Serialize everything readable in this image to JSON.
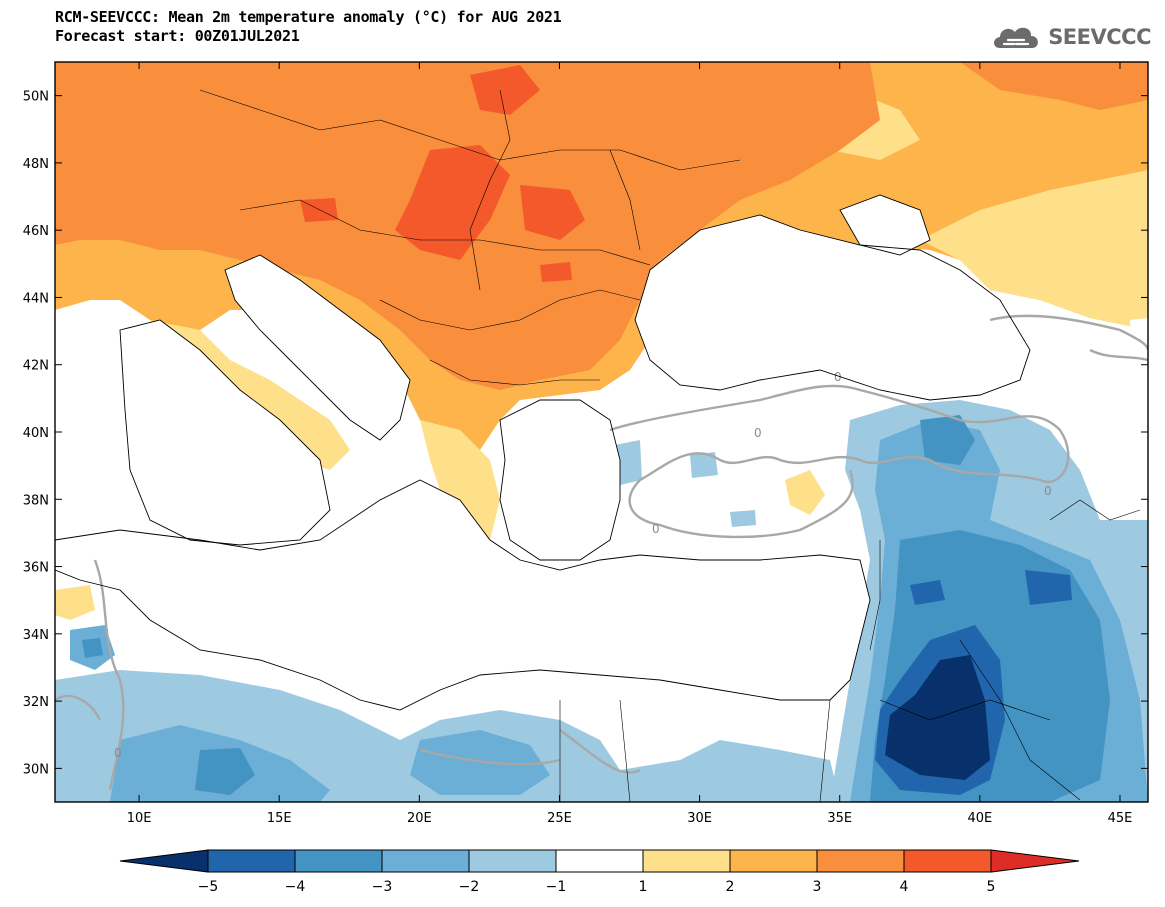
{
  "header": {
    "title_line1": "RCM-SEEVCCC: Mean 2m temperature anomaly (°C) for AUG 2021",
    "title_line2": "Forecast start: 00Z01JUL2021"
  },
  "logo": {
    "text": "SEEVCCC",
    "icon": "cloud-logo-icon"
  },
  "map": {
    "lat_labels": [
      "50N",
      "48N",
      "46N",
      "44N",
      "42N",
      "40N",
      "38N",
      "36N",
      "34N",
      "32N",
      "30N"
    ],
    "lat_values": [
      50,
      48,
      46,
      44,
      42,
      40,
      38,
      36,
      34,
      32,
      30
    ],
    "lon_labels": [
      "10E",
      "15E",
      "20E",
      "25E",
      "30E",
      "35E",
      "40E",
      "45E"
    ],
    "lon_values": [
      10,
      15,
      20,
      25,
      30,
      35,
      40,
      45
    ],
    "lon_range": [
      7,
      46
    ],
    "lat_range": [
      29,
      51
    ],
    "contour_label": "0"
  },
  "colorbar": {
    "labels": [
      "−5",
      "−4",
      "−3",
      "−2",
      "−1",
      "1",
      "2",
      "3",
      "4",
      "5"
    ],
    "colors": [
      "#08306b",
      "#2166ac",
      "#4393c3",
      "#6baed6",
      "#9ecae1",
      "#ffffff",
      "#fee08b",
      "#fdb44b",
      "#f98e3d",
      "#f3592a",
      "#de2d26"
    ]
  },
  "legend_colors": {
    "very_warm": "#f3592a",
    "warm": "#f98e3d",
    "mild_warm": "#fdb44b",
    "slight_warm": "#fee08b",
    "slight_cool": "#9ecae1",
    "cool": "#6baed6",
    "cold": "#4393c3",
    "very_cold": "#2166ac",
    "extreme_cold": "#08306b"
  }
}
